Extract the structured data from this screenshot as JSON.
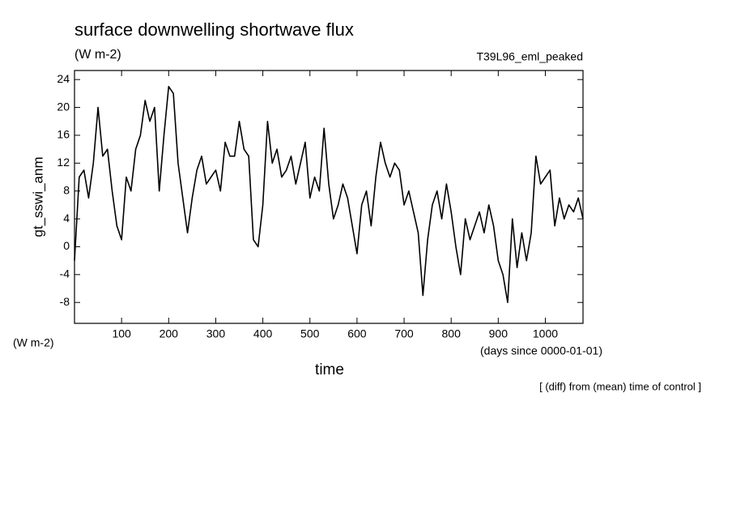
{
  "chart_data": {
    "type": "line",
    "title": "surface downwelling shortwave flux",
    "units": "(W m-2)",
    "run_label": "T39L96_eml_peaked",
    "y_label": "gt_sswi_anm",
    "y_units": "(W m-2)",
    "x_units": "(days since 0000-01-01)",
    "x_label": "time",
    "note": "[ (diff) from (mean) time of control ]",
    "xlim": [
      0,
      1080
    ],
    "xticks": [
      100,
      200,
      300,
      400,
      500,
      600,
      700,
      800,
      900,
      1000
    ],
    "ylim": [
      -11,
      25.3
    ],
    "yticks": [
      -8,
      -4,
      0,
      4,
      8,
      12,
      16,
      20,
      24
    ],
    "x": [
      0,
      10,
      20,
      30,
      40,
      50,
      60,
      70,
      80,
      90,
      100,
      110,
      120,
      130,
      140,
      150,
      160,
      170,
      180,
      190,
      200,
      210,
      220,
      230,
      240,
      250,
      260,
      270,
      280,
      290,
      300,
      310,
      320,
      330,
      340,
      350,
      360,
      370,
      380,
      390,
      400,
      410,
      420,
      430,
      440,
      450,
      460,
      470,
      480,
      490,
      500,
      510,
      520,
      530,
      540,
      550,
      560,
      570,
      580,
      590,
      600,
      610,
      620,
      630,
      640,
      650,
      660,
      670,
      680,
      690,
      700,
      710,
      720,
      730,
      740,
      750,
      760,
      770,
      780,
      790,
      800,
      810,
      820,
      830,
      840,
      850,
      860,
      870,
      880,
      890,
      900,
      910,
      920,
      930,
      940,
      950,
      960,
      970,
      980,
      990,
      1000,
      1010,
      1020,
      1030,
      1040,
      1050,
      1060,
      1070,
      1080
    ],
    "series": [
      {
        "name": "gt_sswi_anm",
        "color": "#000000",
        "values": [
          -2,
          10,
          11,
          7,
          12,
          20,
          13,
          14,
          8,
          3,
          1,
          10,
          8,
          14,
          16,
          21,
          18,
          20,
          8,
          16,
          23,
          22,
          12,
          7,
          2,
          7,
          11,
          13,
          9,
          10,
          11,
          8,
          15,
          13,
          13,
          18,
          14,
          13,
          1,
          0,
          6,
          18,
          12,
          14,
          10,
          11,
          13,
          9,
          12,
          15,
          7,
          10,
          8,
          17,
          9,
          4,
          6,
          9,
          7,
          3,
          -1,
          6,
          8,
          3,
          10,
          15,
          12,
          10,
          12,
          11,
          6,
          8,
          5,
          2,
          -7,
          1,
          6,
          8,
          4,
          9,
          5,
          0,
          -4,
          4,
          1,
          3,
          5,
          2,
          6,
          3,
          -2,
          -4,
          -8,
          4,
          -3,
          2,
          -2,
          2,
          13,
          9,
          10,
          11,
          3,
          7,
          4,
          6,
          5,
          7,
          4
        ]
      }
    ]
  }
}
